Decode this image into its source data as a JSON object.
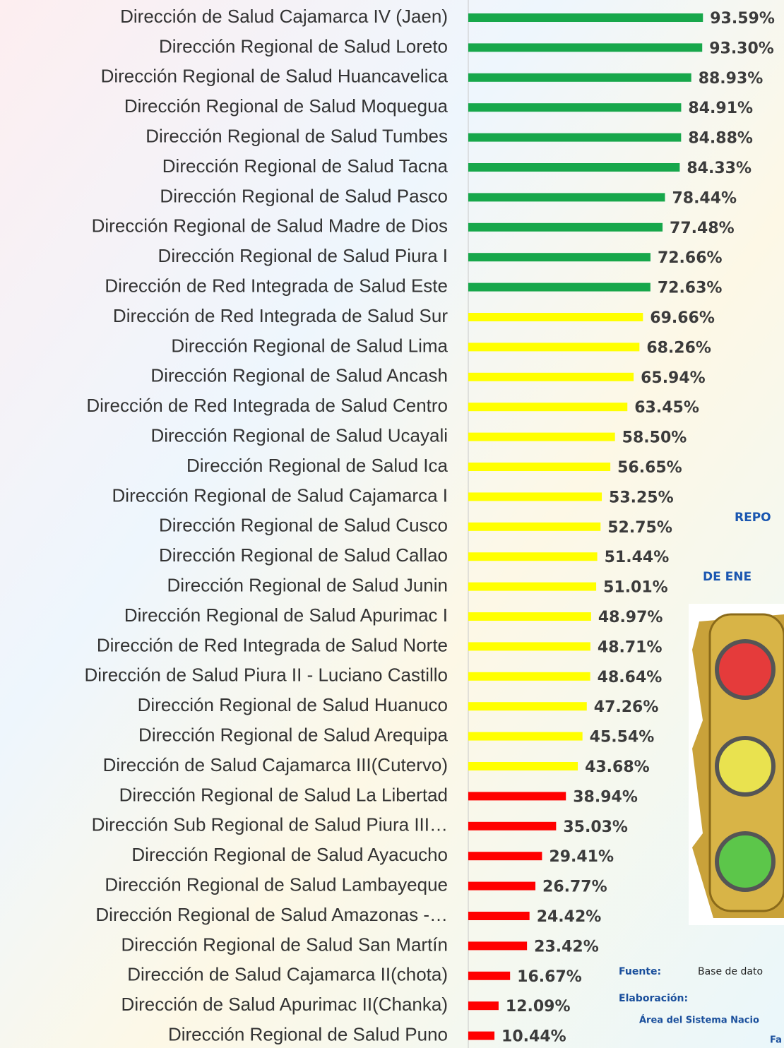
{
  "chart_data": {
    "type": "barh",
    "categories": [
      "Dirección de Salud Cajamarca IV (Jaen)",
      "Dirección Regional de Salud Loreto",
      "Dirección Regional de Salud Huancavelica",
      "Dirección Regional de Salud Moquegua",
      "Dirección Regional de Salud Tumbes",
      "Dirección Regional de Salud Tacna",
      "Dirección Regional de Salud Pasco",
      "Dirección Regional de Salud Madre de Dios",
      "Dirección Regional de Salud Piura I",
      "Dirección de Red Integrada de Salud Este",
      "Dirección de Red Integrada de Salud Sur",
      "Dirección Regional de Salud Lima",
      "Dirección Regional de Salud Ancash",
      "Dirección de Red Integrada de Salud Centro",
      "Dirección Regional de Salud Ucayali",
      "Dirección Regional de Salud Ica",
      "Dirección Regional de Salud Cajamarca I",
      "Dirección Regional de Salud Cusco",
      "Dirección Regional de Salud Callao",
      "Dirección Regional de Salud Junin",
      "Dirección Regional de Salud Apurimac I",
      "Dirección de Red Integrada de Salud Norte",
      "Dirección de Salud Piura II - Luciano Castillo",
      "Dirección Regional de Salud Huanuco",
      "Dirección Regional de Salud Arequipa",
      "Dirección de Salud Cajamarca III(Cutervo)",
      "Dirección Regional de Salud La Libertad",
      "Dirección Sub Regional de Salud Piura III…",
      "Dirección Regional de Salud Ayacucho",
      "Dirección Regional de Salud Lambayeque",
      "Dirección Regional de Salud Amazonas -…",
      "Dirección Regional de Salud San Martín",
      "Dirección de Salud Cajamarca II(chota)",
      "Dirección de Salud Apurimac II(Chanka)",
      "Dirección Regional de Salud Puno"
    ],
    "values": [
      93.59,
      93.3,
      88.93,
      84.91,
      84.88,
      84.33,
      78.44,
      77.48,
      72.66,
      72.63,
      69.66,
      68.26,
      65.94,
      63.45,
      58.5,
      56.65,
      53.25,
      52.75,
      51.44,
      51.01,
      48.97,
      48.71,
      48.64,
      47.26,
      45.54,
      43.68,
      38.94,
      35.03,
      29.41,
      26.77,
      24.42,
      23.42,
      16.67,
      12.09,
      10.44
    ],
    "value_labels": [
      "93.59%",
      "93.30%",
      "88.93%",
      "84.91%",
      "84.88%",
      "84.33%",
      "78.44%",
      "77.48%",
      "72.66%",
      "72.63%",
      "69.66%",
      "68.26%",
      "65.94%",
      "63.45%",
      "58.50%",
      "56.65%",
      "53.25%",
      "52.75%",
      "51.44%",
      "51.01%",
      "48.97%",
      "48.71%",
      "48.64%",
      "47.26%",
      "45.54%",
      "43.68%",
      "38.94%",
      "35.03%",
      "29.41%",
      "26.77%",
      "24.42%",
      "23.42%",
      "16.67%",
      "12.09%",
      "10.44%"
    ],
    "colors": [
      "#17a74b",
      "#17a74b",
      "#17a74b",
      "#17a74b",
      "#17a74b",
      "#17a74b",
      "#17a74b",
      "#17a74b",
      "#17a74b",
      "#17a74b",
      "#ffff00",
      "#ffff00",
      "#ffff00",
      "#ffff00",
      "#ffff00",
      "#ffff00",
      "#ffff00",
      "#ffff00",
      "#ffff00",
      "#ffff00",
      "#ffff00",
      "#ffff00",
      "#ffff00",
      "#ffff00",
      "#ffff00",
      "#ffff00",
      "#ff0000",
      "#ff0000",
      "#ff0000",
      "#ff0000",
      "#ff0000",
      "#ff0000",
      "#ff0000",
      "#ff0000",
      "#ff0000"
    ],
    "xlim": [
      0,
      100
    ],
    "annotations": [
      "REPO",
      "DE ENE",
      "Fuente:",
      "Base de dato",
      "Elaboración:",
      "Área del Sistema Nacio",
      "Fa"
    ]
  }
}
